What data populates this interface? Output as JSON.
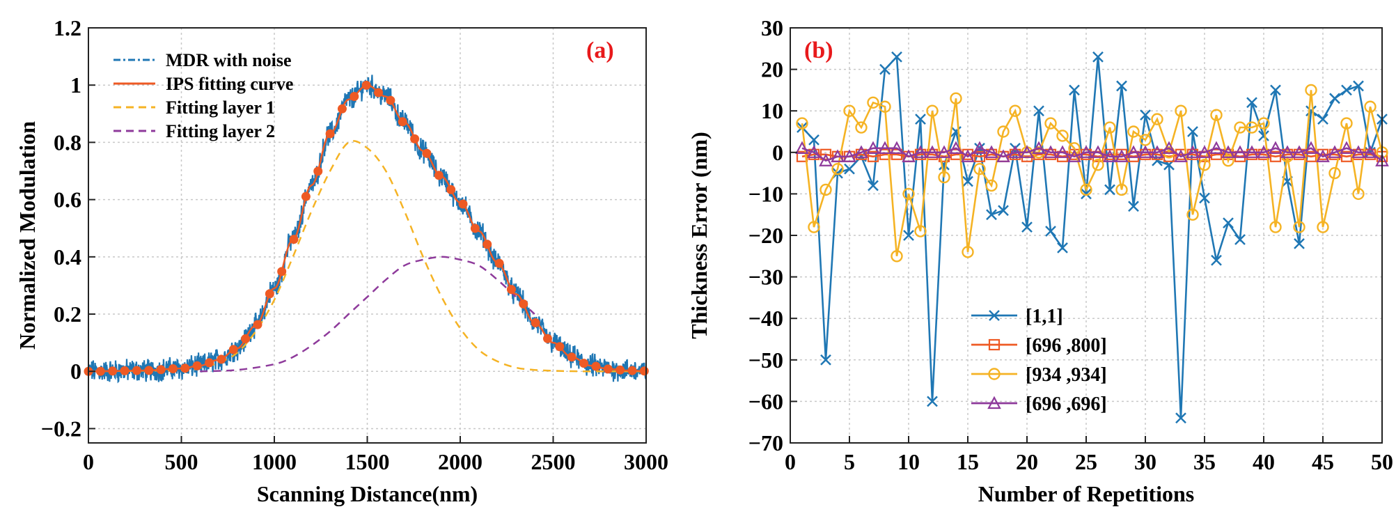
{
  "chart_data": [
    {
      "type": "line",
      "panel_label": "(a)",
      "xlabel": "Scanning Distance(nm)",
      "ylabel": "Normalized Modulation",
      "xlim": [
        0,
        3000
      ],
      "ylim": [
        -0.25,
        1.2
      ],
      "xticks": [
        0,
        500,
        1000,
        1500,
        2000,
        2500,
        3000
      ],
      "xtick_labels": [
        "0",
        "500",
        "1000",
        "1500",
        "2000",
        "2500",
        "3000"
      ],
      "yticks": [
        -0.2,
        0,
        0.2,
        0.4,
        0.6,
        0.8,
        1,
        1.2
      ],
      "ytick_labels": [
        "−0.2",
        "0",
        "0.2",
        "0.4",
        "0.6",
        "0.8",
        "1",
        "1.2"
      ],
      "grid": true,
      "legend_position": "top-left",
      "series": [
        {
          "name": "MDR with noise",
          "color": "#1f77b4",
          "style": "dash-dot",
          "marker": "none",
          "description_source": "noisy modulation signal",
          "x": [
            0,
            300,
            500,
            600,
            700,
            800,
            900,
            1000,
            1100,
            1200,
            1300,
            1400,
            1500,
            1600,
            1700,
            1800,
            1900,
            2000,
            2100,
            2200,
            2300,
            2400,
            2500,
            2600,
            2700,
            2800,
            2900,
            3000
          ],
          "y": [
            0,
            0.003,
            0.01,
            0.02,
            0.04,
            0.08,
            0.16,
            0.29,
            0.46,
            0.65,
            0.83,
            0.95,
            1.0,
            0.96,
            0.87,
            0.77,
            0.68,
            0.59,
            0.49,
            0.38,
            0.27,
            0.17,
            0.1,
            0.05,
            0.02,
            0.008,
            0.003,
            0.001
          ]
        },
        {
          "name": "IPS fitting curve",
          "color": "#ee5a24",
          "style": "solid",
          "marker": "circle",
          "x": [
            0,
            300,
            500,
            600,
            700,
            800,
            900,
            1000,
            1100,
            1200,
            1300,
            1400,
            1500,
            1600,
            1700,
            1800,
            1900,
            2000,
            2100,
            2200,
            2300,
            2400,
            2500,
            2600,
            2700,
            2800,
            2900,
            3000
          ],
          "y": [
            0,
            0.003,
            0.01,
            0.02,
            0.04,
            0.08,
            0.16,
            0.29,
            0.46,
            0.65,
            0.83,
            0.95,
            1.0,
            0.96,
            0.87,
            0.77,
            0.68,
            0.59,
            0.49,
            0.38,
            0.27,
            0.17,
            0.1,
            0.05,
            0.02,
            0.008,
            0.003,
            0.001
          ]
        },
        {
          "name": "Fitting layer 1",
          "color": "#f5b324",
          "style": "dashed",
          "marker": "none",
          "x": [
            0,
            500,
            600,
            700,
            800,
            900,
            1000,
            1100,
            1200,
            1300,
            1400,
            1500,
            1600,
            1700,
            1800,
            1900,
            2000,
            2100,
            2200,
            2300,
            2400,
            2500,
            2600,
            2700,
            3000
          ],
          "y": [
            0,
            0.004,
            0.012,
            0.03,
            0.065,
            0.14,
            0.25,
            0.4,
            0.56,
            0.7,
            0.8,
            0.78,
            0.7,
            0.56,
            0.4,
            0.26,
            0.15,
            0.075,
            0.035,
            0.013,
            0.005,
            0.002,
            0.0005,
            0,
            0
          ]
        },
        {
          "name": "Fitting layer 2",
          "color": "#8e3a9b",
          "style": "dashed",
          "marker": "none",
          "x": [
            600,
            800,
            1000,
            1100,
            1200,
            1300,
            1400,
            1500,
            1600,
            1700,
            1800,
            1900,
            2000,
            2100,
            2200,
            2300,
            2400
          ],
          "y": [
            0,
            0.005,
            0.025,
            0.05,
            0.09,
            0.14,
            0.2,
            0.26,
            0.32,
            0.37,
            0.39,
            0.4,
            0.39,
            0.37,
            0.32,
            0.26,
            0.2
          ]
        }
      ]
    },
    {
      "type": "line",
      "panel_label": "(b)",
      "xlabel": "Number of Repetitions",
      "ylabel": "Thickness Error (nm)",
      "xlim": [
        0,
        50
      ],
      "ylim": [
        -70,
        30
      ],
      "xticks": [
        0,
        5,
        10,
        15,
        20,
        25,
        30,
        35,
        40,
        45,
        50
      ],
      "xtick_labels": [
        "0",
        "5",
        "10",
        "15",
        "20",
        "25",
        "30",
        "35",
        "40",
        "45",
        "50"
      ],
      "yticks": [
        30,
        20,
        10,
        0,
        -10,
        -20,
        -30,
        -40,
        -50,
        -60,
        -70
      ],
      "ytick_labels": [
        "30",
        "20",
        "10",
        "0",
        "−10",
        "−20",
        "−30",
        "−40",
        "−50",
        "−60",
        "−70"
      ],
      "grid": true,
      "legend_position": "bottom-center-left",
      "x": [
        1,
        2,
        3,
        4,
        5,
        6,
        7,
        8,
        9,
        10,
        11,
        12,
        13,
        14,
        15,
        16,
        17,
        18,
        19,
        20,
        21,
        22,
        23,
        24,
        25,
        26,
        27,
        28,
        29,
        30,
        31,
        32,
        33,
        34,
        35,
        36,
        37,
        38,
        39,
        40,
        41,
        42,
        43,
        44,
        45,
        46,
        47,
        48,
        49,
        50
      ],
      "series": [
        {
          "name": "[1,1]",
          "color": "#1f77b4",
          "marker": "x",
          "values": [
            6,
            3,
            -50,
            -5,
            -4,
            -1,
            -8,
            20,
            23,
            -20,
            8,
            -60,
            -3,
            5,
            -7,
            1,
            -15,
            -14,
            1,
            -18,
            10,
            -19,
            -23,
            15,
            -10,
            23,
            -9,
            16,
            -13,
            9,
            -2,
            -3,
            -64,
            5,
            -11,
            -26,
            -17,
            -21,
            12,
            4,
            15,
            -7,
            -22,
            10,
            8,
            13,
            15,
            16,
            0,
            8
          ]
        },
        {
          "name": "[696 ,800]",
          "color": "#ee5a24",
          "marker": "square",
          "values": [
            -1,
            -0.5,
            -0.5,
            -1,
            -1,
            -0.5,
            -1,
            -0.5,
            -0.5,
            -1,
            -0.5,
            -0.5,
            -1,
            -0.5,
            -0.5,
            -1,
            -0.5,
            -1,
            -0.5,
            -1,
            -0.5,
            -0.5,
            -1,
            -0.5,
            -0.5,
            -1,
            -0.5,
            -0.5,
            -1,
            -0.5,
            -0.5,
            -1,
            -0.5,
            -0.5,
            -1,
            -0.5,
            -0.5,
            -1,
            -0.5,
            -0.5,
            -1,
            -0.5,
            -0.5,
            -1,
            -0.5,
            -0.5,
            -1,
            -0.5,
            -0.5,
            -1
          ]
        },
        {
          "name": "[934 ,934]",
          "color": "#f5b324",
          "marker": "circle",
          "values": [
            7,
            -18,
            -9,
            -4,
            10,
            6,
            12,
            11,
            -25,
            -10,
            -19,
            10,
            -6,
            13,
            -24,
            -4,
            -8,
            5,
            10,
            0,
            0,
            7,
            4,
            1,
            -9,
            -3,
            6,
            -9,
            5,
            3,
            8,
            0,
            10,
            -15,
            -3,
            9,
            -2,
            6,
            6,
            7,
            -18,
            -1,
            -18,
            15,
            -18,
            -5,
            7,
            -10,
            11,
            0
          ]
        },
        {
          "name": "[696 ,696]",
          "color": "#8e3a9b",
          "marker": "triangle",
          "values": [
            1,
            0,
            -2,
            -1,
            -1,
            0,
            1,
            1,
            1,
            -1,
            0,
            0,
            0,
            1,
            -1,
            1,
            0,
            -1,
            0,
            0,
            1,
            0,
            0,
            -1,
            0,
            0,
            -1,
            -1,
            0,
            0,
            0,
            1,
            -1,
            0,
            0,
            1,
            0,
            0,
            0,
            0,
            1,
            0,
            0,
            1,
            -1,
            0,
            1,
            0,
            0,
            -2
          ]
        }
      ]
    }
  ]
}
